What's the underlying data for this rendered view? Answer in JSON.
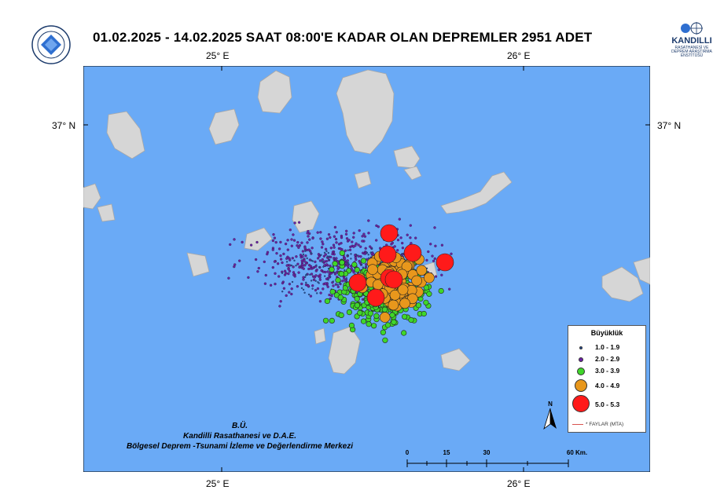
{
  "title": "01.02.2025 - 14.02.2025 SAAT 08:00'E KADAR OLAN DEPREMLER  2951  ADET",
  "coords": {
    "top_left": "25° E",
    "top_right": "26° E",
    "bottom_left": "25° E",
    "bottom_right": "26° E",
    "left_lat": "37° N",
    "right_lat": "37° N"
  },
  "logo_right": {
    "name": "KANDILLI",
    "sub": "RASATHANESİ VE DEPREM ARAŞTIRMA ENSTİTÜSÜ"
  },
  "legend": {
    "title": "Büyüklük",
    "items": [
      {
        "label": "1.0 - 1.9",
        "color": "#1f4fa8"
      },
      {
        "label": "2.0 - 2.9",
        "color": "#6a1fa6"
      },
      {
        "label": "3.0 - 3.9",
        "color": "#3fd62a"
      },
      {
        "label": "4.0 - 4.9",
        "color": "#e8971c"
      },
      {
        "label": "5.0 - 5.3",
        "color": "#ff1a1a"
      }
    ],
    "faults": "* FAYLAR (MTA)"
  },
  "north_label": "N",
  "credits": {
    "line1": "B.Ü.",
    "line2": "Kandilli Rasathanesi ve D.A.E.",
    "line3": "Bölgesel Deprem -Tsunami İzleme ve Değerlendirme Merkezi"
  },
  "scale": {
    "ticks": [
      "0",
      "15",
      "30",
      "60 Km."
    ]
  },
  "colors": {
    "sea": "#6aaaf6",
    "land": "#d3d3d3"
  }
}
